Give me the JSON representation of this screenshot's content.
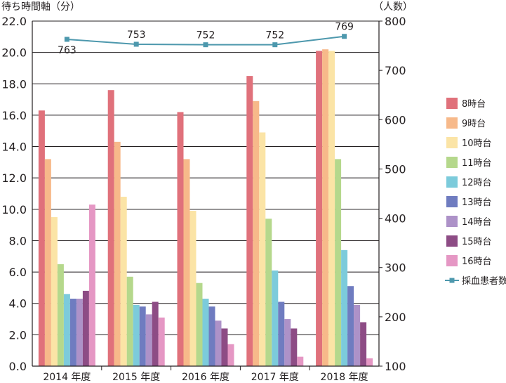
{
  "chart_data": {
    "type": "bar",
    "y_left_label": "待ち時間軸（分）",
    "y_right_label": "（人数）",
    "categories": [
      "2014 年度",
      "2015 年度",
      "2016 年度",
      "2017 年度",
      "2018 年度"
    ],
    "ylim_left": [
      0,
      22
    ],
    "yticks_left": [
      "0.0",
      "2.0",
      "4.0",
      "6.0",
      "8.0",
      "10.0",
      "12.0",
      "14.0",
      "16.0",
      "18.0",
      "20.0",
      "22.0"
    ],
    "ylim_right": [
      100,
      800
    ],
    "yticks_right": [
      "100",
      "200",
      "300",
      "400",
      "500",
      "600",
      "700",
      "800"
    ],
    "grid": true,
    "legend_position": "right",
    "series": [
      {
        "name": "8時台",
        "color": "#e0717b",
        "values": [
          16.3,
          17.6,
          16.2,
          18.5,
          20.1
        ]
      },
      {
        "name": "9時台",
        "color": "#f7b98a",
        "values": [
          13.2,
          14.3,
          13.2,
          16.9,
          20.2
        ]
      },
      {
        "name": "10時台",
        "color": "#fbe4a6",
        "values": [
          9.5,
          10.8,
          9.9,
          14.9,
          20.1
        ]
      },
      {
        "name": "11時台",
        "color": "#b5d88c",
        "values": [
          6.5,
          5.7,
          5.3,
          9.4,
          13.2
        ]
      },
      {
        "name": "12時台",
        "color": "#7ccbdb",
        "values": [
          4.6,
          3.9,
          4.3,
          6.1,
          7.4
        ]
      },
      {
        "name": "13時台",
        "color": "#6f7cc0",
        "values": [
          4.3,
          3.8,
          3.8,
          4.1,
          5.1
        ]
      },
      {
        "name": "14時台",
        "color": "#ad92c8",
        "values": [
          4.3,
          3.3,
          2.9,
          3.0,
          3.9
        ]
      },
      {
        "name": "15時台",
        "color": "#8d4c85",
        "values": [
          4.8,
          4.1,
          2.4,
          2.4,
          2.8
        ]
      },
      {
        "name": "16時台",
        "color": "#e597c4",
        "values": [
          10.3,
          3.1,
          1.4,
          0.6,
          0.5
        ]
      }
    ],
    "line_series": {
      "name": "採血患者数",
      "color": "#4d98ad",
      "axis": "right",
      "values": [
        763,
        753,
        752,
        752,
        769
      ],
      "labels": [
        "763",
        "753",
        "752",
        "752",
        "769"
      ]
    }
  }
}
